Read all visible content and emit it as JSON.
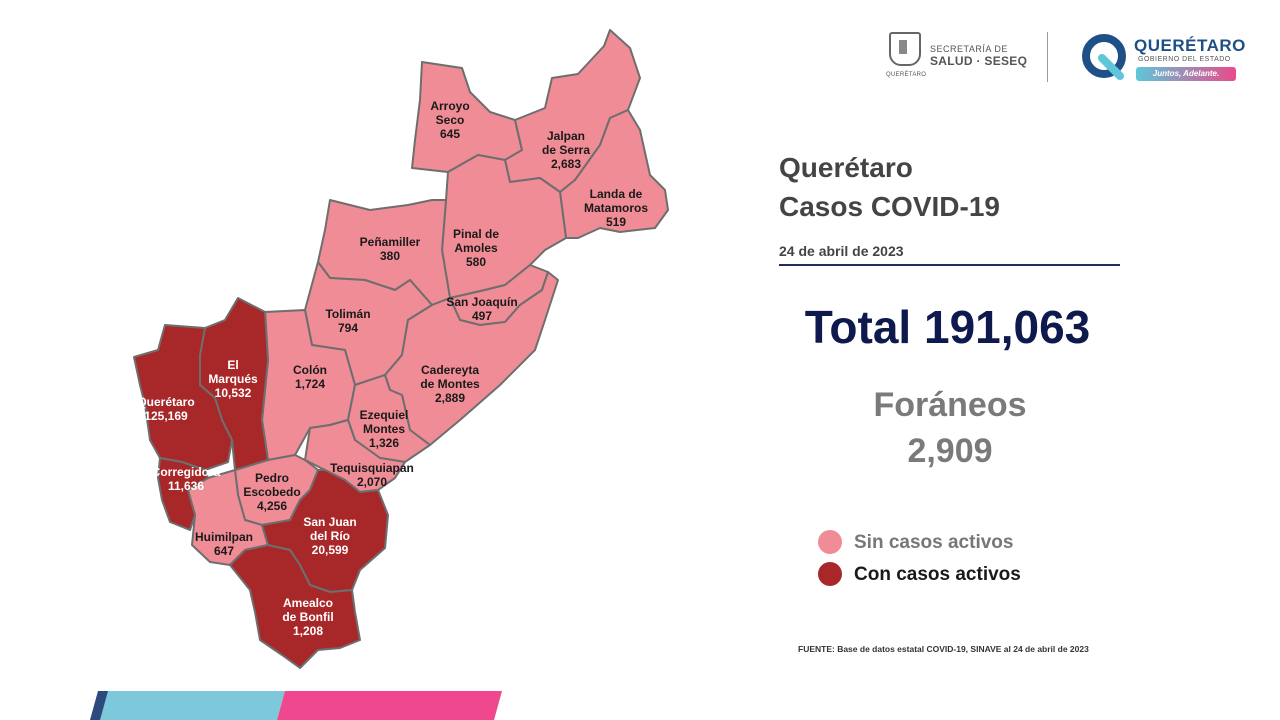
{
  "header": {
    "secretaria": {
      "line1": "SECRETARÍA DE",
      "line2": "SALUD · SESEQ",
      "seal_caption": "QUERÉTARO"
    },
    "gobierno": {
      "title": "QUERÉTARO",
      "subtitle": "GOBIERNO DEL ESTADO",
      "slogan": "Juntos, Adelante."
    }
  },
  "panel": {
    "title_line1": "Querétaro",
    "title_line2": "Casos COVID-19",
    "date": "24 de abril  de 2023",
    "total": "Total 191,063",
    "foraneos_label": "Foráneos",
    "foraneos_value": "2,909"
  },
  "legend": {
    "sin": {
      "label": "Sin casos activos",
      "color": "#f08c96"
    },
    "con": {
      "label": "Con casos activos",
      "color": "#a8282a"
    }
  },
  "source": "FUENTE: Base de datos estatal  COVID-19,  SINAVE  al 24 de abril de 2023",
  "map": {
    "colors": {
      "sin": "#f08c96",
      "con": "#a8282a",
      "border": "#6e6e6e"
    },
    "municipalities": [
      {
        "name": "Arroyo Seco",
        "label_lines": [
          "Arroyo",
          "Seco"
        ],
        "cases": "645",
        "status": "sin"
      },
      {
        "name": "Jalpan de Serra",
        "label_lines": [
          "Jalpan",
          "de Serra"
        ],
        "cases": "2,683",
        "status": "sin"
      },
      {
        "name": "Landa de Matamoros",
        "label_lines": [
          "Landa de",
          "Matamoros"
        ],
        "cases": "519",
        "status": "sin"
      },
      {
        "name": "Pinal de Amoles",
        "label_lines": [
          "Pinal de",
          "Amoles"
        ],
        "cases": "580",
        "status": "sin"
      },
      {
        "name": "Peñamiller",
        "label_lines": [
          "Peñamiller"
        ],
        "cases": "380",
        "status": "sin"
      },
      {
        "name": "San Joaquín",
        "label_lines": [
          "San Joaquín"
        ],
        "cases": "497",
        "status": "sin"
      },
      {
        "name": "Tolimán",
        "label_lines": [
          "Tolimán"
        ],
        "cases": "794",
        "status": "sin"
      },
      {
        "name": "Colón",
        "label_lines": [
          "Colón"
        ],
        "cases": "1,724",
        "status": "sin"
      },
      {
        "name": "Cadereyta de Montes",
        "label_lines": [
          "Cadereyta",
          "de Montes"
        ],
        "cases": "2,889",
        "status": "sin"
      },
      {
        "name": "Ezequiel Montes",
        "label_lines": [
          "Ezequiel",
          "Montes"
        ],
        "cases": "1,326",
        "status": "sin"
      },
      {
        "name": "Tequisquiapan",
        "label_lines": [
          "Tequisquiapan"
        ],
        "cases": "2,070",
        "status": "sin"
      },
      {
        "name": "Pedro Escobedo",
        "label_lines": [
          "Pedro",
          "Escobedo"
        ],
        "cases": "4,256",
        "status": "sin"
      },
      {
        "name": "Huimilpan",
        "label_lines": [
          "Huimilpan"
        ],
        "cases": "647",
        "status": "sin"
      },
      {
        "name": "El Marqués",
        "label_lines": [
          "El",
          "Marqués"
        ],
        "cases": "10,532",
        "status": "con"
      },
      {
        "name": "Querétaro",
        "label_lines": [
          "Querétaro"
        ],
        "cases": "125,169",
        "status": "con"
      },
      {
        "name": "Corregidora",
        "label_lines": [
          "Corregidora"
        ],
        "cases": "11,636",
        "status": "con"
      },
      {
        "name": "San Juan del Río",
        "label_lines": [
          "San Juan",
          "del Río"
        ],
        "cases": "20,599",
        "status": "con"
      },
      {
        "name": "Amealco de Bonfil",
        "label_lines": [
          "Amealco",
          "de Bonfil"
        ],
        "cases": "1,208",
        "status": "con"
      }
    ]
  },
  "footer": {
    "colors": [
      "#2c4a7e",
      "#7ec8dc",
      "#f0488e"
    ]
  }
}
